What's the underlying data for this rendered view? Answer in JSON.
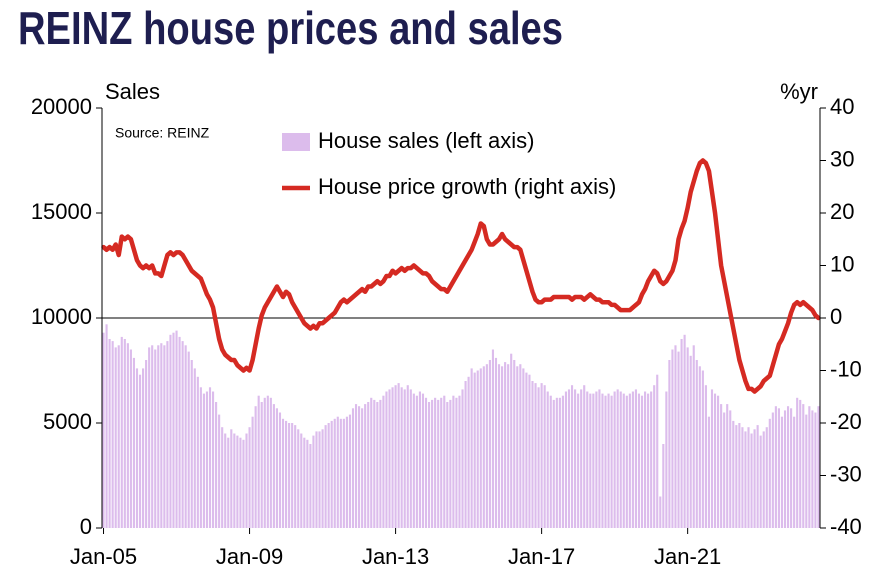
{
  "chart_data": {
    "type": "combo",
    "title": "REINZ house prices and sales",
    "annotation": "Source: REINZ",
    "y_label": "Sales",
    "y2_label": "%yr",
    "categories": [
      "Jan-05",
      null,
      null,
      null,
      null,
      null,
      null,
      null,
      null,
      null,
      null,
      null,
      null,
      null,
      null,
      null,
      null,
      null,
      null,
      null,
      null,
      null,
      null,
      null,
      null,
      null,
      null,
      null,
      null,
      null,
      null,
      null,
      null,
      null,
      null,
      null,
      null,
      null,
      null,
      null,
      null,
      null,
      null,
      null,
      null,
      null,
      null,
      null,
      "Jan-09",
      null,
      null,
      null,
      null,
      null,
      null,
      null,
      null,
      null,
      null,
      null,
      null,
      null,
      null,
      null,
      null,
      null,
      null,
      null,
      null,
      null,
      null,
      null,
      null,
      null,
      null,
      null,
      null,
      null,
      null,
      null,
      null,
      null,
      null,
      null,
      null,
      null,
      null,
      null,
      null,
      null,
      null,
      null,
      null,
      null,
      null,
      null,
      "Jan-13",
      null,
      null,
      null,
      null,
      null,
      null,
      null,
      null,
      null,
      null,
      null,
      null,
      null,
      null,
      null,
      null,
      null,
      null,
      null,
      null,
      null,
      null,
      null,
      null,
      null,
      null,
      null,
      null,
      null,
      null,
      null,
      null,
      null,
      null,
      null,
      null,
      null,
      null,
      null,
      null,
      null,
      null,
      null,
      null,
      null,
      null,
      null,
      "Jan-17",
      null,
      null,
      null,
      null,
      null,
      null,
      null,
      null,
      null,
      null,
      null,
      null,
      null,
      null,
      null,
      null,
      null,
      null,
      null,
      null,
      null,
      null,
      null,
      null,
      null,
      null,
      null,
      null,
      null,
      null,
      null,
      null,
      null,
      null,
      null,
      null,
      null,
      null,
      null,
      null,
      null,
      null,
      null,
      null,
      null,
      null,
      null,
      "Jan-21",
      null,
      null,
      null,
      null,
      null,
      null,
      null,
      null,
      null,
      null,
      null,
      null,
      null,
      null,
      null,
      null,
      null,
      null,
      null,
      null,
      null,
      null,
      null,
      null,
      null,
      null,
      null,
      null,
      null,
      null,
      null,
      null,
      null,
      null,
      null,
      null,
      null,
      null,
      null,
      null,
      null,
      null,
      null
    ],
    "series": [
      {
        "name": "House sales (left axis)",
        "type": "bar",
        "color": "#dcbcec",
        "values": [
          9300,
          9700,
          9000,
          8900,
          8600,
          8700,
          9100,
          9000,
          8800,
          8500,
          8100,
          7600,
          7300,
          7600,
          8000,
          8600,
          8700,
          8500,
          8700,
          8800,
          8700,
          8900,
          9200,
          9300,
          9400,
          9100,
          8900,
          8700,
          8400,
          8000,
          7600,
          7200,
          6700,
          6400,
          6500,
          6700,
          6500,
          6000,
          5400,
          4800,
          4500,
          4300,
          4700,
          4500,
          4400,
          4300,
          4200,
          4500,
          4800,
          5300,
          5800,
          6300,
          6000,
          6200,
          6300,
          6200,
          5900,
          5700,
          5500,
          5200,
          5100,
          5000,
          5000,
          4900,
          4700,
          4500,
          4300,
          4200,
          4000,
          4400,
          4600,
          4600,
          4700,
          4900,
          5000,
          5100,
          5200,
          5300,
          5200,
          5200,
          5300,
          5400,
          5700,
          5900,
          5800,
          5700,
          5900,
          6000,
          6200,
          6100,
          6000,
          6100,
          6300,
          6500,
          6600,
          6700,
          6800,
          6900,
          6700,
          6600,
          6800,
          6600,
          6400,
          6300,
          6500,
          6400,
          6200,
          6000,
          6100,
          6200,
          6100,
          6200,
          6300,
          6000,
          6100,
          6300,
          6200,
          6300,
          6600,
          7000,
          7200,
          7600,
          7400,
          7500,
          7600,
          7700,
          7800,
          8000,
          8500,
          8100,
          7800,
          7700,
          7900,
          7800,
          8300,
          8000,
          7700,
          7800,
          7600,
          7400,
          7300,
          7000,
          6900,
          6700,
          6900,
          6800,
          6500,
          6300,
          6100,
          6200,
          6200,
          6300,
          6500,
          6600,
          6800,
          6600,
          6400,
          6600,
          6800,
          6500,
          6400,
          6400,
          6500,
          6600,
          6400,
          6300,
          6400,
          6300,
          6500,
          6600,
          6500,
          6400,
          6300,
          6400,
          6500,
          6600,
          6400,
          6300,
          6500,
          6400,
          6500,
          6800,
          7300,
          1500,
          4000,
          6500,
          8000,
          8500,
          8700,
          8400,
          9000,
          9200,
          8600,
          8200,
          8700,
          8000,
          7700,
          7500,
          6800,
          5300,
          6600,
          6400,
          6300,
          5900,
          5500,
          5900,
          5600,
          5100,
          4900,
          5000,
          4800,
          4600,
          4800,
          4500,
          4700,
          4900,
          4400,
          4600,
          4800,
          5200,
          5500,
          5800,
          5700,
          5300,
          5600,
          5800,
          5700,
          5300,
          6200,
          6100,
          5900,
          5400,
          5800,
          5600,
          5500,
          5800
        ]
      },
      {
        "name": "House price growth (right axis)",
        "type": "line",
        "axis": "y2",
        "color": "#d52a22",
        "values": [
          13.5,
          13,
          13.5,
          13,
          14,
          12,
          15.5,
          15,
          15.5,
          15,
          13,
          11,
          10,
          9.5,
          10,
          9.5,
          10,
          8.5,
          8.5,
          8,
          10,
          12,
          12.5,
          12,
          12.5,
          12.5,
          12,
          11,
          10,
          9,
          8.5,
          8,
          7.5,
          6,
          4.5,
          3.5,
          2,
          -1,
          -4,
          -6,
          -7,
          -7.5,
          -8,
          -8,
          -9,
          -9.5,
          -10,
          -9.5,
          -10,
          -8,
          -5,
          -2,
          0.5,
          2,
          3,
          4,
          5,
          6,
          5,
          4,
          5,
          4.5,
          3,
          2,
          1,
          0,
          -1,
          -1.5,
          -2,
          -1.5,
          -2,
          -1,
          -1,
          -0.5,
          0,
          0.5,
          1,
          2,
          3,
          3.5,
          3,
          3.5,
          4,
          4.5,
          5,
          5.5,
          5,
          6,
          6,
          6.5,
          7,
          6.5,
          7,
          8,
          8,
          9,
          8.5,
          9,
          9.5,
          9,
          9.5,
          9.5,
          10,
          9.5,
          9,
          8.5,
          8.5,
          8,
          7,
          6.5,
          6,
          5.5,
          5.5,
          5,
          6,
          7,
          8,
          9,
          10,
          11,
          12,
          13,
          14.5,
          16,
          18,
          17.5,
          15,
          14,
          14,
          14.5,
          15,
          16,
          15,
          14.5,
          14,
          13.5,
          13.5,
          13,
          11,
          9,
          7,
          5,
          3.5,
          3,
          3,
          3.5,
          3.5,
          3.5,
          4,
          4,
          4,
          4,
          4,
          4,
          3.5,
          4,
          4,
          4,
          3.5,
          4,
          4.5,
          4,
          3.5,
          3.5,
          3,
          3,
          3,
          2.5,
          2.5,
          2,
          1.5,
          1.5,
          1.5,
          1.5,
          2,
          2.5,
          3,
          4.5,
          5.5,
          7,
          8,
          9,
          8.5,
          7,
          6.5,
          7,
          8,
          9,
          11,
          15,
          17,
          18.5,
          21,
          24,
          26,
          28,
          29.5,
          30,
          29.5,
          28,
          24,
          20,
          15,
          10,
          7,
          4,
          1,
          -2,
          -5,
          -8,
          -10,
          -12,
          -13.5,
          -13.5,
          -14,
          -13.5,
          -13,
          -12,
          -11.5,
          -11,
          -9,
          -7,
          -5,
          -4,
          -2.5,
          -1,
          1,
          2.5,
          3,
          2.5,
          3,
          2.5,
          2,
          1.5,
          0.5,
          0
        ]
      }
    ],
    "ylim": [
      0,
      20000
    ],
    "yticks": [
      0,
      5000,
      10000,
      15000,
      20000
    ],
    "y2lim": [
      -40,
      40
    ],
    "y2ticks": [
      -40,
      -30,
      -20,
      -10,
      0,
      10,
      20,
      30,
      40
    ]
  }
}
